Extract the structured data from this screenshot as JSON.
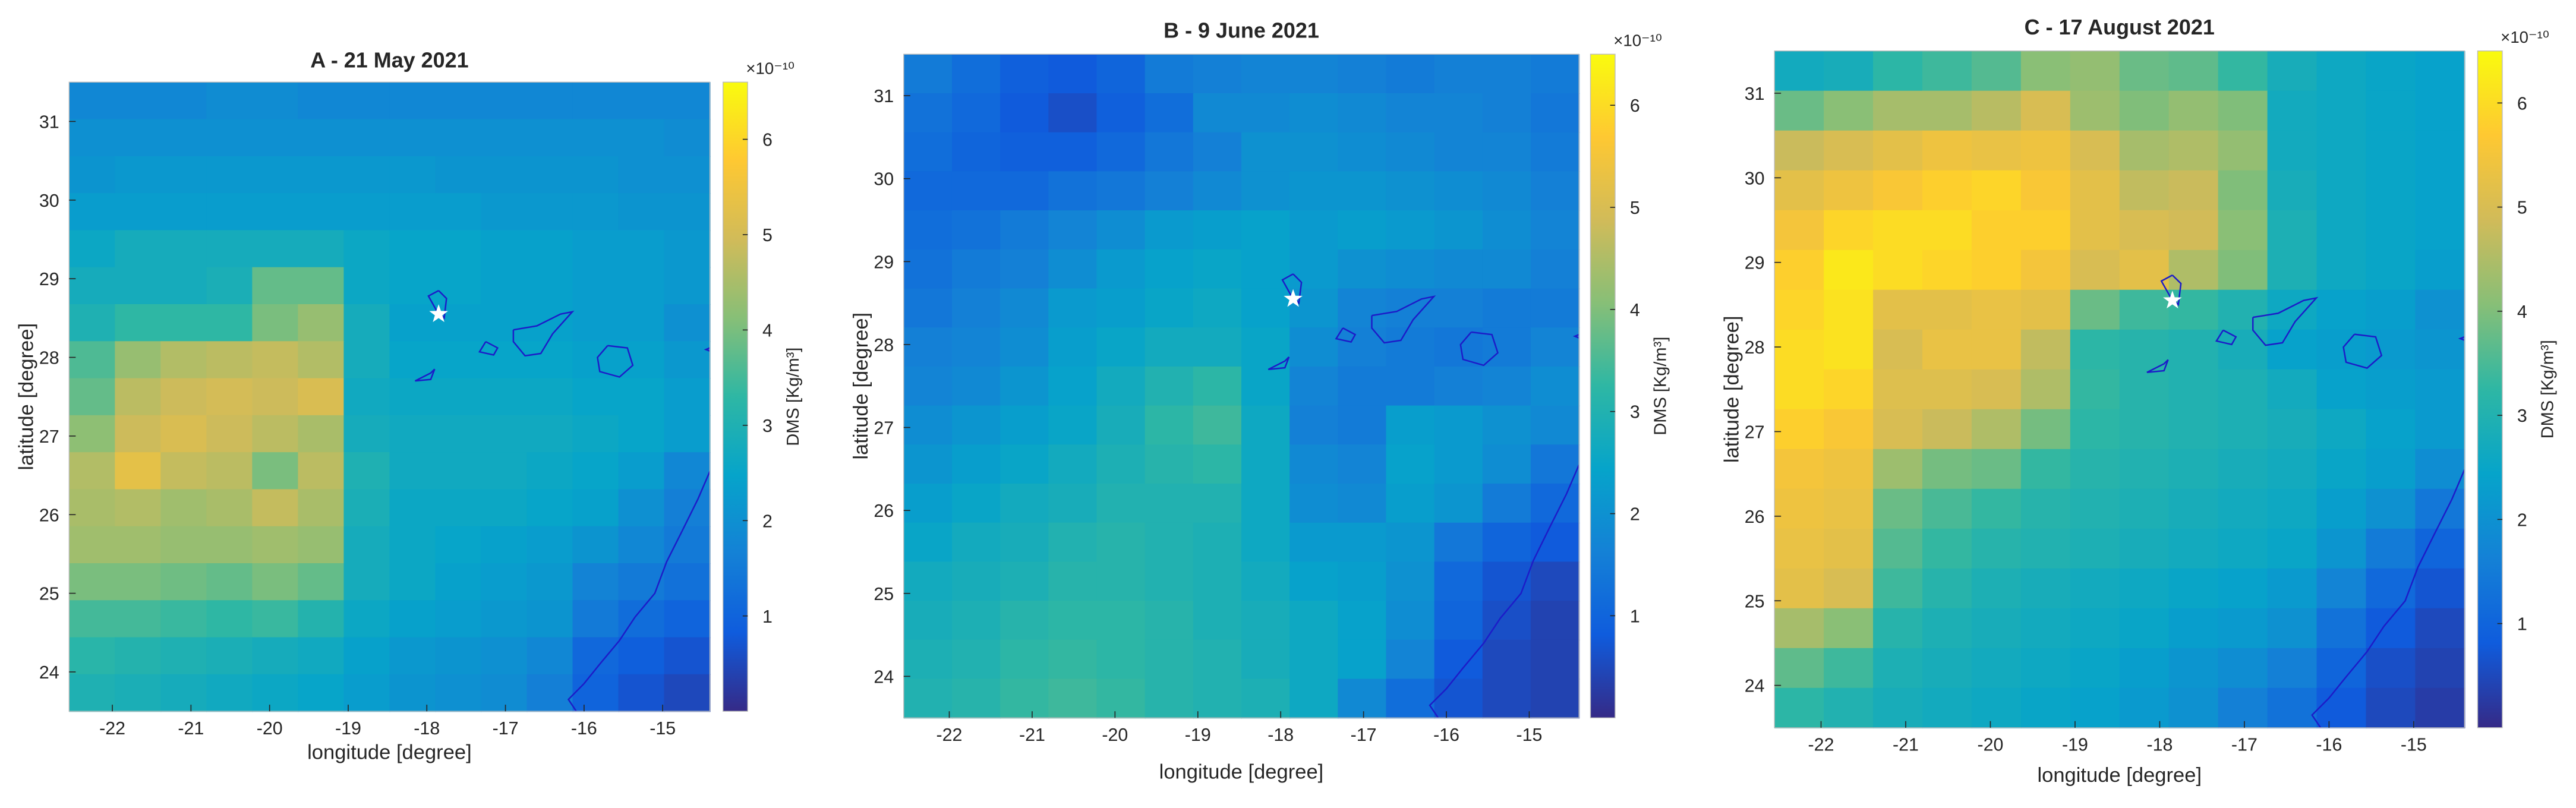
{
  "chart_data": [
    {
      "type": "heatmap",
      "title": "A - 21 May 2021",
      "xlabel": "longitude [degree]",
      "ylabel": "latitude [degree]",
      "xlim": [
        -22.55,
        -14.4
      ],
      "ylim": [
        23.5,
        31.5
      ],
      "xticks": [
        -22,
        -21,
        -20,
        -19,
        -18,
        -17,
        -16,
        -15
      ],
      "yticks": [
        24,
        25,
        26,
        27,
        28,
        29,
        30,
        31
      ],
      "colorbar": {
        "label": "DMS [Kg/m³]",
        "multiplier": "×10⁻¹⁰",
        "lim": [
          0,
          6.6
        ],
        "ticks": [
          1,
          2,
          3,
          4,
          5,
          6
        ]
      },
      "marker": {
        "x": -17.85,
        "y": 28.55
      },
      "values": [
        [
          1.8,
          1.8,
          1.8,
          1.9,
          1.9,
          1.8,
          1.8,
          1.8,
          1.8,
          1.8,
          1.8,
          1.8,
          1.8,
          1.8
        ],
        [
          2.0,
          2.0,
          2.0,
          2.0,
          2.0,
          2.0,
          2.0,
          2.0,
          2.0,
          2.0,
          2.0,
          2.0,
          2.0,
          1.9
        ],
        [
          2.1,
          2.2,
          2.2,
          2.2,
          2.2,
          2.2,
          2.2,
          2.2,
          2.1,
          2.1,
          2.1,
          2.1,
          2.0,
          2.0
        ],
        [
          2.3,
          2.3,
          2.3,
          2.3,
          2.3,
          2.3,
          2.3,
          2.3,
          2.3,
          2.2,
          2.2,
          2.2,
          2.1,
          2.1
        ],
        [
          2.6,
          2.8,
          2.8,
          2.8,
          2.8,
          2.8,
          2.6,
          2.5,
          2.5,
          2.4,
          2.4,
          2.3,
          2.3,
          2.2
        ],
        [
          2.8,
          2.8,
          2.8,
          2.9,
          3.8,
          3.8,
          2.6,
          2.5,
          2.5,
          2.4,
          2.4,
          2.3,
          2.3,
          2.2
        ],
        [
          3.0,
          3.3,
          3.3,
          3.3,
          4.0,
          4.3,
          2.8,
          2.4,
          2.4,
          2.4,
          2.4,
          2.3,
          2.3,
          2.0
        ],
        [
          3.6,
          4.3,
          4.6,
          4.7,
          4.8,
          4.6,
          2.8,
          2.5,
          2.5,
          2.5,
          2.5,
          2.4,
          2.4,
          2.2
        ],
        [
          3.8,
          4.7,
          4.9,
          5.0,
          4.9,
          5.1,
          2.7,
          2.6,
          2.6,
          2.6,
          2.6,
          2.5,
          2.5,
          2.3
        ],
        [
          4.2,
          4.9,
          5.1,
          4.9,
          4.7,
          4.5,
          2.8,
          2.7,
          2.7,
          2.7,
          2.7,
          2.6,
          2.5,
          2.3
        ],
        [
          4.6,
          5.3,
          4.8,
          4.7,
          4.0,
          4.7,
          3.0,
          2.7,
          2.7,
          2.7,
          2.6,
          2.5,
          2.3,
          1.8
        ],
        [
          4.5,
          4.6,
          4.4,
          4.5,
          4.8,
          4.5,
          2.9,
          2.6,
          2.6,
          2.6,
          2.5,
          2.4,
          2.0,
          1.6
        ],
        [
          4.4,
          4.4,
          4.3,
          4.3,
          4.4,
          4.3,
          2.8,
          2.6,
          2.5,
          2.4,
          2.3,
          2.1,
          1.8,
          1.5
        ],
        [
          4.0,
          4.0,
          3.9,
          3.8,
          4.0,
          3.8,
          2.8,
          2.6,
          2.4,
          2.3,
          2.2,
          1.7,
          1.5,
          1.3
        ],
        [
          3.5,
          3.5,
          3.4,
          3.3,
          3.4,
          3.1,
          2.6,
          2.4,
          2.3,
          2.2,
          2.1,
          1.5,
          1.2,
          1.0
        ],
        [
          3.2,
          3.1,
          3.0,
          2.9,
          2.8,
          2.7,
          2.4,
          2.2,
          2.1,
          2.0,
          1.8,
          1.1,
          0.9,
          0.7
        ],
        [
          3.0,
          2.9,
          2.8,
          2.7,
          2.6,
          2.5,
          2.3,
          2.1,
          2.0,
          1.9,
          1.6,
          1.0,
          0.7,
          0.5
        ]
      ]
    },
    {
      "type": "heatmap",
      "title": "B - 9 June 2021",
      "xlabel": "longitude [degree]",
      "ylabel": "latitude [degree]",
      "xlim": [
        -22.55,
        -14.4
      ],
      "ylim": [
        23.5,
        31.5
      ],
      "xticks": [
        -22,
        -21,
        -20,
        -19,
        -18,
        -17,
        -16,
        -15
      ],
      "yticks": [
        24,
        25,
        26,
        27,
        28,
        29,
        30,
        31
      ],
      "colorbar": {
        "label": "DMS [Kg/m³]",
        "multiplier": "×10⁻¹⁰",
        "lim": [
          0,
          6.5
        ],
        "ticks": [
          1,
          2,
          3,
          4,
          5,
          6
        ]
      },
      "marker": {
        "x": -17.85,
        "y": 28.55
      },
      "values": [
        [
          1.5,
          1.2,
          0.9,
          0.8,
          1.0,
          1.5,
          1.6,
          1.7,
          1.7,
          1.6,
          1.5,
          1.6,
          1.6,
          1.5
        ],
        [
          1.3,
          1.1,
          0.8,
          0.6,
          0.9,
          1.2,
          1.8,
          1.8,
          1.9,
          1.8,
          1.7,
          1.7,
          1.6,
          1.4
        ],
        [
          1.2,
          1.0,
          0.9,
          0.9,
          1.1,
          1.4,
          1.6,
          2.0,
          2.0,
          1.9,
          1.8,
          1.7,
          1.7,
          1.5
        ],
        [
          1.1,
          1.1,
          1.1,
          1.3,
          1.4,
          1.6,
          1.8,
          2.0,
          2.1,
          2.1,
          2.0,
          1.9,
          1.8,
          1.6
        ],
        [
          1.2,
          1.3,
          1.5,
          1.7,
          1.9,
          2.2,
          2.3,
          2.4,
          2.2,
          2.3,
          2.2,
          2.1,
          1.9,
          1.7
        ],
        [
          1.3,
          1.5,
          1.6,
          1.9,
          2.2,
          2.4,
          2.5,
          2.4,
          2.2,
          2.0,
          1.9,
          1.8,
          1.8,
          1.6
        ],
        [
          1.4,
          1.6,
          1.8,
          2.2,
          2.3,
          2.5,
          2.6,
          2.4,
          2.1,
          1.7,
          1.6,
          1.6,
          1.5,
          1.5
        ],
        [
          1.6,
          1.7,
          1.9,
          2.3,
          2.5,
          2.7,
          2.7,
          2.5,
          1.9,
          1.6,
          1.5,
          1.4,
          1.5,
          1.7
        ],
        [
          1.7,
          1.8,
          2.1,
          2.4,
          2.7,
          3.0,
          3.2,
          2.5,
          1.7,
          1.5,
          1.5,
          1.6,
          1.7,
          1.9
        ],
        [
          1.9,
          2.1,
          2.3,
          2.5,
          2.8,
          3.2,
          3.4,
          2.6,
          1.6,
          1.5,
          2.3,
          2.2,
          2.0,
          1.8
        ],
        [
          2.1,
          2.3,
          2.5,
          2.7,
          2.9,
          3.1,
          3.2,
          2.6,
          1.8,
          1.7,
          2.4,
          2.2,
          1.9,
          1.4
        ],
        [
          2.3,
          2.5,
          2.7,
          2.8,
          3.0,
          3.0,
          3.0,
          2.6,
          1.9,
          1.8,
          2.3,
          2.1,
          1.5,
          1.1
        ],
        [
          2.5,
          2.7,
          2.8,
          3.0,
          3.1,
          3.0,
          2.9,
          2.6,
          2.2,
          2.2,
          2.1,
          1.4,
          1.0,
          0.8
        ],
        [
          2.7,
          2.8,
          2.9,
          3.1,
          3.1,
          3.0,
          2.9,
          2.7,
          2.4,
          2.3,
          2.0,
          1.1,
          0.7,
          0.5
        ],
        [
          2.8,
          2.9,
          3.1,
          3.2,
          3.2,
          3.1,
          2.9,
          2.8,
          2.6,
          2.4,
          1.9,
          1.0,
          0.6,
          0.4
        ],
        [
          2.9,
          3.0,
          3.2,
          3.3,
          3.2,
          3.1,
          3.0,
          2.8,
          2.6,
          2.4,
          1.7,
          0.8,
          0.5,
          0.4
        ],
        [
          3.0,
          3.1,
          3.3,
          3.4,
          3.3,
          3.1,
          3.0,
          2.9,
          2.6,
          1.8,
          1.2,
          0.7,
          0.5,
          0.4
        ]
      ]
    },
    {
      "type": "heatmap",
      "title": "C - 17 August 2021",
      "xlabel": "longitude [degree]",
      "ylabel": "latitude [degree]",
      "xlim": [
        -22.55,
        -14.4
      ],
      "ylim": [
        23.5,
        31.5
      ],
      "xticks": [
        -22,
        -21,
        -20,
        -19,
        -18,
        -17,
        -16,
        -15
      ],
      "yticks": [
        24,
        25,
        26,
        27,
        28,
        29,
        30,
        31
      ],
      "colorbar": {
        "label": "DMS [Kg/m³]",
        "multiplier": "×10⁻¹⁰",
        "lim": [
          0,
          6.5
        ],
        "ticks": [
          1,
          2,
          3,
          4,
          5,
          6
        ]
      },
      "marker": {
        "x": -17.85,
        "y": 28.55
      },
      "values": [
        [
          2.7,
          2.8,
          3.2,
          3.4,
          3.6,
          4.1,
          4.2,
          3.8,
          3.7,
          3.3,
          2.8,
          2.6,
          2.5,
          2.4
        ],
        [
          3.8,
          4.1,
          4.4,
          4.4,
          4.6,
          5.0,
          4.3,
          4.0,
          4.2,
          4.0,
          2.7,
          2.6,
          2.5,
          2.4
        ],
        [
          4.8,
          5.0,
          5.2,
          5.4,
          5.3,
          5.4,
          5.0,
          4.4,
          4.5,
          4.2,
          2.7,
          2.6,
          2.5,
          2.4
        ],
        [
          5.2,
          5.4,
          5.6,
          5.8,
          5.9,
          5.6,
          5.2,
          4.7,
          4.8,
          4.0,
          2.8,
          2.6,
          2.5,
          2.4
        ],
        [
          5.5,
          5.9,
          6.0,
          6.0,
          5.8,
          5.8,
          5.2,
          5.0,
          4.9,
          4.1,
          2.9,
          2.6,
          2.5,
          2.4
        ],
        [
          5.8,
          6.2,
          6.0,
          5.9,
          5.8,
          5.5,
          5.0,
          5.2,
          4.5,
          4.0,
          2.9,
          2.6,
          2.5,
          2.3
        ],
        [
          5.9,
          6.1,
          5.2,
          5.2,
          5.3,
          5.2,
          3.8,
          3.4,
          3.3,
          3.0,
          2.6,
          2.4,
          2.3,
          2.0
        ],
        [
          6.0,
          6.1,
          5.0,
          5.3,
          5.3,
          4.7,
          3.2,
          3.1,
          3.0,
          2.8,
          2.4,
          2.3,
          2.2,
          2.1
        ],
        [
          6.0,
          5.9,
          5.1,
          5.1,
          5.0,
          4.5,
          3.3,
          3.1,
          3.0,
          2.9,
          2.7,
          2.4,
          2.3,
          2.2
        ],
        [
          5.8,
          5.6,
          5.0,
          4.8,
          4.5,
          3.9,
          3.2,
          3.1,
          3.0,
          2.9,
          2.8,
          2.6,
          2.4,
          2.2
        ],
        [
          5.5,
          5.4,
          4.3,
          3.9,
          3.8,
          3.3,
          3.1,
          3.0,
          2.9,
          2.8,
          2.7,
          2.5,
          2.3,
          1.9
        ],
        [
          5.4,
          5.3,
          3.8,
          3.5,
          3.3,
          3.1,
          3.0,
          2.9,
          2.8,
          2.7,
          2.6,
          2.3,
          2.0,
          1.4
        ],
        [
          5.3,
          5.2,
          3.6,
          3.3,
          3.1,
          3.0,
          2.9,
          2.8,
          2.7,
          2.6,
          2.5,
          2.1,
          1.5,
          1.0
        ],
        [
          5.2,
          5.0,
          3.4,
          3.1,
          2.9,
          2.8,
          2.7,
          2.6,
          2.5,
          2.4,
          2.2,
          1.7,
          1.1,
          0.7
        ],
        [
          4.4,
          4.1,
          3.1,
          2.9,
          2.8,
          2.7,
          2.6,
          2.5,
          2.3,
          2.2,
          2.0,
          1.3,
          0.8,
          0.5
        ],
        [
          3.7,
          3.4,
          2.9,
          2.8,
          2.7,
          2.6,
          2.5,
          2.3,
          2.1,
          1.9,
          1.6,
          1.0,
          0.6,
          0.4
        ],
        [
          3.2,
          3.0,
          2.8,
          2.7,
          2.6,
          2.5,
          2.4,
          2.2,
          2.0,
          1.6,
          1.3,
          0.8,
          0.5,
          0.3
        ]
      ]
    }
  ]
}
